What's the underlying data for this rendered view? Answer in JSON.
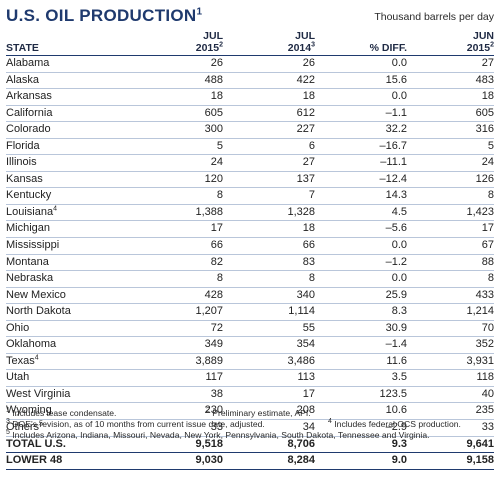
{
  "title": "U.S. OIL PRODUCTION",
  "title_footnote": "1",
  "units": "Thousand barrels per day",
  "headers": {
    "state": "STATE",
    "jul2015_month": "JUL",
    "jul2015_year": "2015",
    "jul2015_note": "2",
    "jul2014_month": "JUL",
    "jul2014_year": "2014",
    "jul2014_note": "3",
    "diff": "% DIFF.",
    "jun2015_month": "JUN",
    "jun2015_year": "2015",
    "jun2015_note": "2"
  },
  "rows": [
    {
      "state": "Alabama",
      "note": "",
      "jul2015": "26",
      "jul2014": "26",
      "diff": "0.0",
      "jun2015": "27"
    },
    {
      "state": "Alaska",
      "note": "",
      "jul2015": "488",
      "jul2014": "422",
      "diff": "15.6",
      "jun2015": "483"
    },
    {
      "state": "Arkansas",
      "note": "",
      "jul2015": "18",
      "jul2014": "18",
      "diff": "0.0",
      "jun2015": "18"
    },
    {
      "state": "California",
      "note": "",
      "jul2015": "605",
      "jul2014": "612",
      "diff": "–1.1",
      "jun2015": "605"
    },
    {
      "state": "Colorado",
      "note": "",
      "jul2015": "300",
      "jul2014": "227",
      "diff": "32.2",
      "jun2015": "316"
    },
    {
      "state": "Florida",
      "note": "",
      "jul2015": "5",
      "jul2014": "6",
      "diff": "–16.7",
      "jun2015": "5"
    },
    {
      "state": "Illinois",
      "note": "",
      "jul2015": "24",
      "jul2014": "27",
      "diff": "–11.1",
      "jun2015": "24"
    },
    {
      "state": "Kansas",
      "note": "",
      "jul2015": "120",
      "jul2014": "137",
      "diff": "–12.4",
      "jun2015": "126"
    },
    {
      "state": "Kentucky",
      "note": "",
      "jul2015": "8",
      "jul2014": "7",
      "diff": "14.3",
      "jun2015": "8"
    },
    {
      "state": "Louisiana",
      "note": "4",
      "jul2015": "1,388",
      "jul2014": "1,328",
      "diff": "4.5",
      "jun2015": "1,423"
    },
    {
      "state": "Michigan",
      "note": "",
      "jul2015": "17",
      "jul2014": "18",
      "diff": "–5.6",
      "jun2015": "17"
    },
    {
      "state": "Mississippi",
      "note": "",
      "jul2015": "66",
      "jul2014": "66",
      "diff": "0.0",
      "jun2015": "67"
    },
    {
      "state": "Montana",
      "note": "",
      "jul2015": "82",
      "jul2014": "83",
      "diff": "–1.2",
      "jun2015": "88"
    },
    {
      "state": "Nebraska",
      "note": "",
      "jul2015": "8",
      "jul2014": "8",
      "diff": "0.0",
      "jun2015": "8"
    },
    {
      "state": "New Mexico",
      "note": "",
      "jul2015": "428",
      "jul2014": "340",
      "diff": "25.9",
      "jun2015": "433"
    },
    {
      "state": "North Dakota",
      "note": "",
      "jul2015": "1,207",
      "jul2014": "1,114",
      "diff": "8.3",
      "jun2015": "1,214"
    },
    {
      "state": "Ohio",
      "note": "",
      "jul2015": "72",
      "jul2014": "55",
      "diff": "30.9",
      "jun2015": "70"
    },
    {
      "state": "Oklahoma",
      "note": "",
      "jul2015": "349",
      "jul2014": "354",
      "diff": "–1.4",
      "jun2015": "352"
    },
    {
      "state": "Texas",
      "note": "4",
      "jul2015": "3,889",
      "jul2014": "3,486",
      "diff": "11.6",
      "jun2015": "3,931"
    },
    {
      "state": "Utah",
      "note": "",
      "jul2015": "117",
      "jul2014": "113",
      "diff": "3.5",
      "jun2015": "118"
    },
    {
      "state": "West Virginia",
      "note": "",
      "jul2015": "38",
      "jul2014": "17",
      "diff": "123.5",
      "jun2015": "40"
    },
    {
      "state": "Wyoming",
      "note": "",
      "jul2015": "230",
      "jul2014": "208",
      "diff": "10.6",
      "jun2015": "235"
    },
    {
      "state": "Others",
      "note": "5",
      "jul2015": "33",
      "jul2014": "34",
      "diff": "–2.9",
      "jun2015": "33"
    }
  ],
  "totals": [
    {
      "state": "TOTAL U.S.",
      "jul2015": "9,518",
      "jul2014": "8,706",
      "diff": "9.3",
      "jun2015": "9,641"
    },
    {
      "state": "LOWER 48",
      "jul2015": "9,030",
      "jul2014": "8,284",
      "diff": "9.0",
      "jun2015": "9,158"
    }
  ],
  "footnotes": {
    "n1": "Includes lease condensate.",
    "n1_mark": "1",
    "n2": "Preliminary estimate, API.",
    "n2_mark": "2",
    "n3": "DOE’s revision, as of 10 months from current issue date, adjusted.",
    "n3_mark": "3",
    "n4": "Includes federal OCS production.",
    "n4_mark": "4",
    "n5": "Includes Arizona, Indiana, Missouri, Nevada, New York, Pennsylvania, South Dakota, Tennessee and Virginia.",
    "n5_mark": "5"
  }
}
